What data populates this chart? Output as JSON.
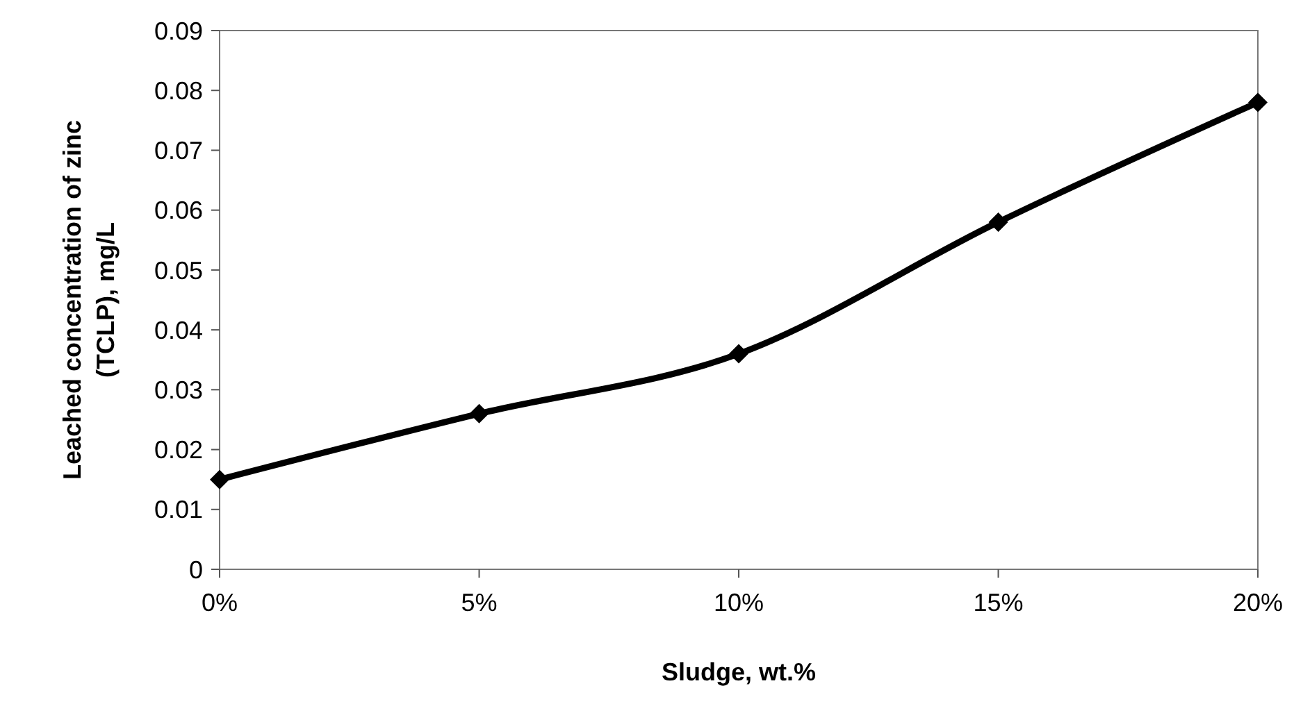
{
  "chart_data": {
    "type": "line",
    "xlabel": "Sludge, wt.%",
    "ylabel": "Leached concentration of zinc (TCLP), mg/L",
    "categories": [
      "0%",
      "5%",
      "10%",
      "15%",
      "20%"
    ],
    "series": [
      {
        "color": "#000000",
        "values": [
          0.015,
          0.026,
          0.036,
          0.058,
          0.078
        ]
      }
    ],
    "ylim": [
      0,
      0.09
    ],
    "yticks": [
      0,
      0.01,
      0.02,
      0.03,
      0.04,
      0.05,
      0.06,
      0.07,
      0.08,
      0.09
    ],
    "marker": "diamond",
    "line_style": "solid"
  }
}
